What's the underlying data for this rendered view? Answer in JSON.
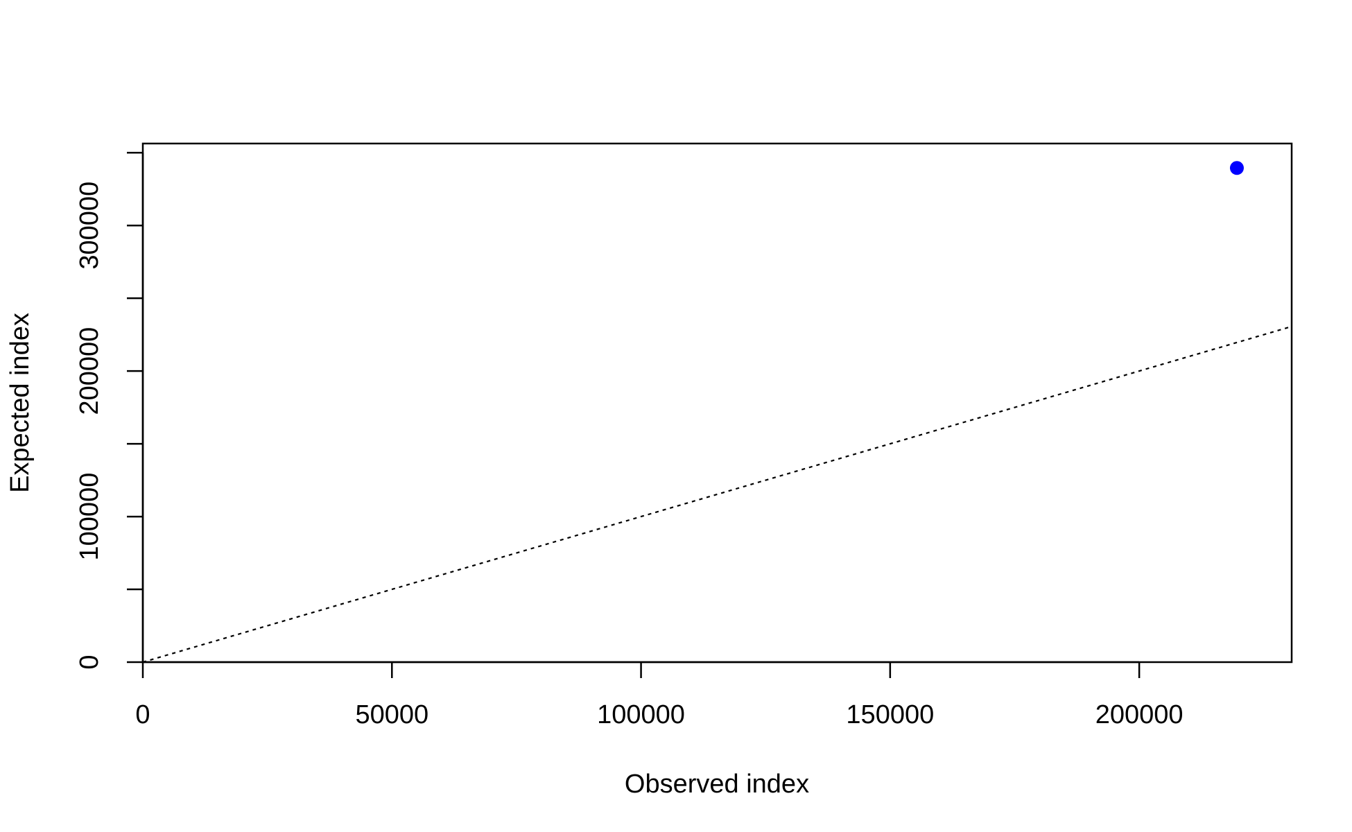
{
  "chart_data": {
    "type": "scatter",
    "x_label": "Observed index",
    "y_label": "Expected index",
    "x": [
      219600
    ],
    "values": [
      339500
    ],
    "color": "#0000ff",
    "xlim": [
      0,
      230600
    ],
    "ylim": [
      0,
      356300
    ],
    "xticks": [
      0,
      50000,
      100000,
      150000,
      200000
    ],
    "yticks": [
      0,
      {
        "value": 50000,
        "label": null
      },
      100000,
      {
        "value": 150000,
        "label": null
      },
      200000,
      {
        "value": 250000,
        "label": null
      },
      300000,
      {
        "value": 350000,
        "label": null
      }
    ],
    "identity_line": true,
    "grid": false
  }
}
